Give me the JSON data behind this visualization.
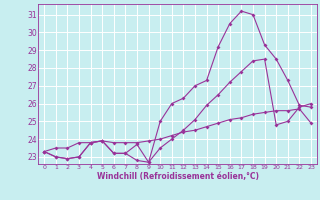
{
  "xlabel": "Windchill (Refroidissement éolien,°C)",
  "ylabel_ticks": [
    23,
    24,
    25,
    26,
    27,
    28,
    29,
    30,
    31
  ],
  "xlim": [
    -0.5,
    23.5
  ],
  "ylim": [
    22.6,
    31.6
  ],
  "background_color": "#c8eef0",
  "line_color": "#993399",
  "grid_color": "#ffffff",
  "series": [
    [
      23.3,
      23.0,
      22.9,
      23.0,
      23.8,
      23.9,
      23.2,
      23.2,
      22.8,
      22.7,
      25.0,
      26.0,
      26.3,
      27.0,
      27.3,
      29.2,
      30.5,
      31.2,
      31.0,
      29.3,
      28.5,
      27.3,
      25.9,
      25.8
    ],
    [
      23.3,
      23.0,
      22.9,
      23.0,
      23.8,
      23.9,
      23.2,
      23.2,
      23.7,
      22.7,
      23.5,
      24.0,
      24.5,
      25.1,
      25.9,
      26.5,
      27.2,
      27.8,
      28.4,
      28.5,
      24.8,
      25.0,
      25.8,
      26.0
    ],
    [
      23.3,
      23.5,
      23.5,
      23.8,
      23.8,
      23.9,
      23.8,
      23.8,
      23.8,
      23.9,
      24.0,
      24.2,
      24.4,
      24.5,
      24.7,
      24.9,
      25.1,
      25.2,
      25.4,
      25.5,
      25.6,
      25.6,
      25.7,
      24.9
    ]
  ],
  "xtick_labels": [
    "0",
    "1",
    "2",
    "3",
    "4",
    "5",
    "6",
    "7",
    "8",
    "9",
    "10",
    "11",
    "12",
    "13",
    "14",
    "15",
    "16",
    "17",
    "18",
    "19",
    "20",
    "21",
    "22",
    "23"
  ],
  "xtick_fontsize": 4.5,
  "ytick_fontsize": 5.5,
  "xlabel_fontsize": 5.5,
  "linewidth": 0.8,
  "markersize": 2.0
}
